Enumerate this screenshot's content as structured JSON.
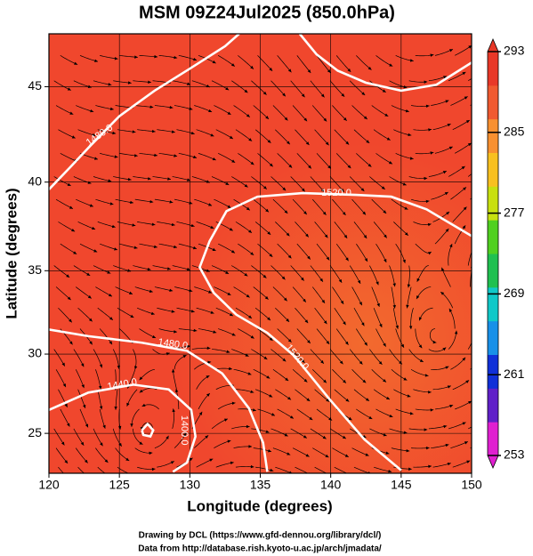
{
  "chart_data": {
    "type": "map",
    "title": "MSM 09Z24Jul2025 (850.0hPa)",
    "x_label": "Longitude (degrees)",
    "y_label": "Latitude  (degrees)",
    "xlim": [
      120,
      150
    ],
    "ylim": [
      22.4,
      47.6
    ],
    "xticks": [
      120,
      125,
      130,
      135,
      140,
      145,
      150
    ],
    "yticks": [
      25,
      30,
      35,
      40,
      45
    ],
    "grid": true,
    "projection": "mercator",
    "contour_color": "#ffffff",
    "contours": [
      {
        "lon": [
          120,
          121.5,
          123,
          125,
          127.5,
          130,
          132.5,
          133.5
        ],
        "lat": [
          39.6,
          40.8,
          42,
          43.5,
          44.8,
          45.9,
          47,
          47.6
        ]
      },
      {
        "lon": [
          137.8,
          139,
          140.5,
          142.5,
          145,
          147.5,
          150
        ],
        "lat": [
          47.6,
          46.6,
          45.8,
          45.2,
          44.8,
          45.1,
          46.2
        ]
      },
      {
        "lon": [
          150,
          146.8,
          144.3,
          141.8,
          138,
          134.8,
          132.6,
          131.4,
          130.7,
          131.7,
          133.3,
          135.5,
          137.4,
          139.9,
          142.4,
          145
        ],
        "lat": [
          37,
          38.5,
          39.2,
          39.3,
          39.4,
          39.2,
          38.4,
          36.7,
          35.2,
          33.7,
          32.4,
          31.3,
          29.9,
          27.2,
          24.6,
          22.6
        ]
      },
      {
        "lon": [
          120,
          122.8,
          126.6,
          129.8,
          132.3,
          134.2,
          135.2,
          135.5
        ],
        "lat": [
          31.5,
          31.1,
          30.7,
          30.2,
          28.8,
          26.6,
          24.4,
          22.5
        ]
      },
      {
        "lon": [
          120,
          122.8,
          126,
          128.5,
          130.1,
          130.4,
          129.8,
          128.8
        ],
        "lat": [
          26.5,
          27.6,
          28.1,
          27.8,
          26.5,
          24.8,
          23.1,
          22.5
        ]
      },
      {
        "lon": [
          126.6,
          127,
          127.4,
          127.2,
          126.7,
          126.6
        ],
        "lat": [
          25.2,
          25.6,
          25.2,
          24.8,
          24.9,
          25.2
        ]
      }
    ],
    "contour_labels": [
      {
        "text": "1480.0",
        "lon": 123.6,
        "lat": 42.5,
        "angle": -35
      },
      {
        "text": "1520.0",
        "lon": 140.4,
        "lat": 39.4,
        "angle": 0
      },
      {
        "text": "1480.0",
        "lon": 128.8,
        "lat": 30.6,
        "angle": 8
      },
      {
        "text": "1520.0",
        "lon": 137.6,
        "lat": 29.8,
        "angle": 50
      },
      {
        "text": "1440.0",
        "lon": 125.2,
        "lat": 28.1,
        "angle": -10
      },
      {
        "text": "1400.0",
        "lon": 129.6,
        "lat": 25.2,
        "angle": 90
      }
    ],
    "colorbar": {
      "lim": [
        253,
        293
      ],
      "ticks": [
        253,
        261,
        269,
        277,
        285,
        293
      ],
      "colors": [
        "#e020d0",
        "#6020c8",
        "#1030d8",
        "#1890e8",
        "#10c8c8",
        "#20c050",
        "#50d020",
        "#c8e010",
        "#f8c020",
        "#f89030",
        "#f05a30",
        "#e83828"
      ]
    },
    "footer": [
      "Drawing by DCL (https://www.gfd-dennou.org/library/dcl/)",
      "Data from http://database.rish.kyoto-u.ac.jp/arch/jmadata/"
    ]
  }
}
